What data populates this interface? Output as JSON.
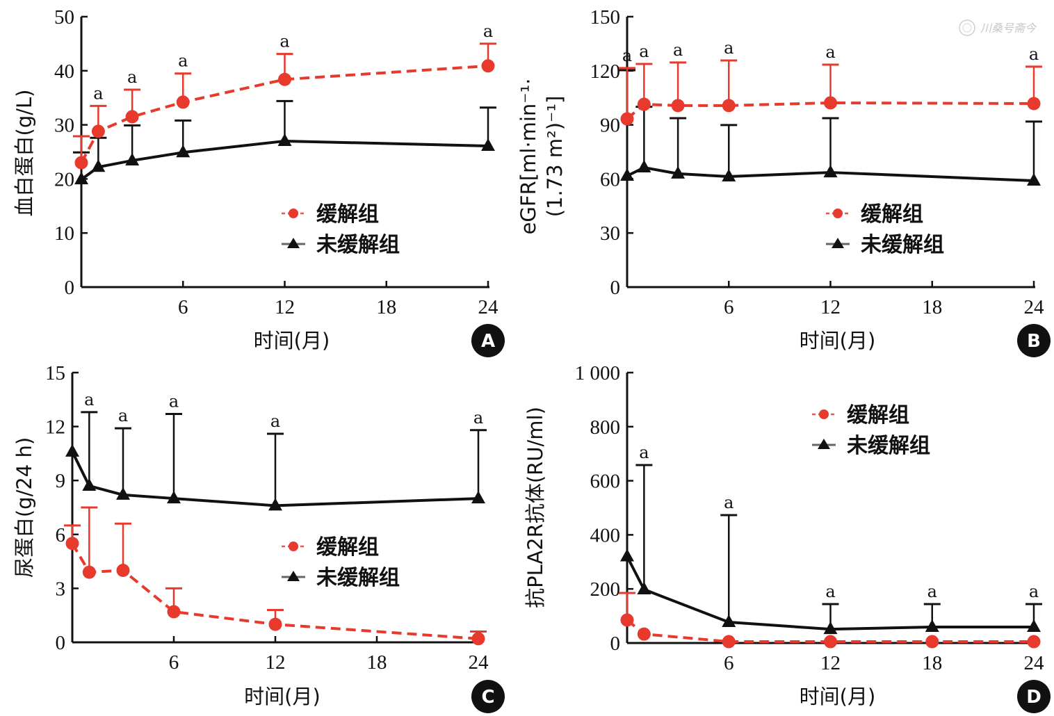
{
  "watermark": {
    "text": "川桑号斋今",
    "icon": "seal-logo-icon"
  },
  "colors": {
    "remission": "#e8392d",
    "non_remission": "#111111"
  },
  "legend_labels": {
    "remission": "缓解组",
    "non_remission": "未缓解组"
  },
  "chart_data": [
    {
      "id": "A",
      "panel_label": "A",
      "type": "line",
      "title": "",
      "xlabel": "时间(月)",
      "ylabel": "血白蛋白(g/L)",
      "xlim": [
        0,
        24
      ],
      "ylim": [
        0,
        50
      ],
      "xticks": [
        6,
        12,
        18,
        24
      ],
      "xtick_labels": [
        "6",
        "12",
        "18",
        "24"
      ],
      "yticks": [
        0,
        10,
        20,
        30,
        40,
        50
      ],
      "ytick_labels": [
        "0",
        "10",
        "20",
        "30",
        "40",
        "50"
      ],
      "grid": false,
      "legend_position": "center-right",
      "series": [
        {
          "name": "缓解组",
          "key": "remission",
          "style": "dashed",
          "marker": "circle",
          "x": [
            0,
            1,
            3,
            6,
            12,
            24
          ],
          "values": [
            23.0,
            28.8,
            31.5,
            34.2,
            38.4,
            40.9
          ],
          "error_upper": [
            27.9,
            33.5,
            36.5,
            39.5,
            43.1,
            45.0
          ]
        },
        {
          "name": "未缓解组",
          "key": "non_remission",
          "style": "solid",
          "marker": "triangle",
          "x": [
            0,
            1,
            3,
            6,
            12,
            24
          ],
          "values": [
            19.9,
            22.2,
            23.4,
            24.9,
            27.0,
            26.1
          ],
          "error_upper": [
            24.9,
            27.6,
            29.9,
            30.8,
            34.4,
            33.2
          ]
        }
      ],
      "annotations": [
        {
          "x": 1,
          "y": 33.5,
          "text": "a"
        },
        {
          "x": 3,
          "y": 36.5,
          "text": "a"
        },
        {
          "x": 6,
          "y": 39.5,
          "text": "a"
        },
        {
          "x": 12,
          "y": 43.1,
          "text": "a"
        },
        {
          "x": 24,
          "y": 45.0,
          "text": "a"
        }
      ]
    },
    {
      "id": "B",
      "panel_label": "B",
      "type": "line",
      "title": "",
      "xlabel": "时间(月)",
      "ylabel": "eGFR[ml·min⁻¹·",
      "ylabel2": "(1.73 m²)⁻¹]",
      "xlim": [
        0,
        24
      ],
      "ylim": [
        0,
        150
      ],
      "xticks": [
        6,
        12,
        18,
        24
      ],
      "xtick_labels": [
        "6",
        "12",
        "18",
        "24"
      ],
      "yticks": [
        0,
        30,
        60,
        90,
        120,
        150
      ],
      "ytick_labels": [
        "0",
        "30",
        "60",
        "90",
        "120",
        "150"
      ],
      "grid": false,
      "legend_position": "lower-right",
      "series": [
        {
          "name": "缓解组",
          "key": "remission",
          "style": "dashed",
          "marker": "circle",
          "x": [
            0,
            1,
            3,
            6,
            12,
            24
          ],
          "values": [
            93.3,
            101.4,
            100.7,
            100.7,
            102.2,
            101.8
          ],
          "error_upper": [
            121.5,
            123.8,
            124.6,
            125.7,
            123.4,
            122.3
          ]
        },
        {
          "name": "未缓解组",
          "key": "non_remission",
          "style": "solid",
          "marker": "triangle",
          "x": [
            0,
            1,
            3,
            6,
            12,
            24
          ],
          "values": [
            61.7,
            66.3,
            62.9,
            61.3,
            63.6,
            59.0
          ],
          "error_upper": [
            120.3,
            100.0,
            93.7,
            89.9,
            93.7,
            91.8
          ]
        }
      ],
      "annotations": [
        {
          "x": 0,
          "y": 121.5,
          "text": "a"
        },
        {
          "x": 1,
          "y": 123.8,
          "text": "a"
        },
        {
          "x": 3,
          "y": 124.6,
          "text": "a"
        },
        {
          "x": 6,
          "y": 125.7,
          "text": "a"
        },
        {
          "x": 12,
          "y": 123.4,
          "text": "a"
        },
        {
          "x": 24,
          "y": 122.3,
          "text": "a"
        }
      ]
    },
    {
      "id": "C",
      "panel_label": "C",
      "type": "line",
      "title": "",
      "xlabel": "时间(月)",
      "ylabel": "尿蛋白(g/24 h)",
      "xlim": [
        0,
        24
      ],
      "ylim": [
        0,
        15
      ],
      "xticks": [
        6,
        12,
        18,
        24
      ],
      "xtick_labels": [
        "6",
        "12",
        "18",
        "24"
      ],
      "yticks": [
        0,
        3,
        6,
        9,
        12,
        15
      ],
      "ytick_labels": [
        "0",
        "3",
        "6",
        "9",
        "12",
        "15"
      ],
      "grid": false,
      "legend_position": "center-right",
      "series": [
        {
          "name": "缓解组",
          "key": "remission",
          "style": "dashed",
          "marker": "circle",
          "x": [
            0,
            1,
            3,
            6,
            12,
            24
          ],
          "values": [
            5.5,
            3.9,
            4.0,
            1.7,
            1.0,
            0.2
          ],
          "error_upper": [
            6.5,
            7.5,
            6.6,
            3.0,
            1.8,
            0.6
          ]
        },
        {
          "name": "未缓解组",
          "key": "non_remission",
          "style": "solid",
          "marker": "triangle",
          "x": [
            0,
            1,
            3,
            6,
            12,
            24
          ],
          "values": [
            10.6,
            8.7,
            8.2,
            8.0,
            7.6,
            8.0
          ],
          "error_upper": [
            null,
            12.8,
            11.9,
            12.7,
            11.6,
            11.8
          ]
        }
      ],
      "annotations": [
        {
          "x": 1,
          "y": 12.8,
          "text": "a"
        },
        {
          "x": 3,
          "y": 11.9,
          "text": "a"
        },
        {
          "x": 6,
          "y": 12.7,
          "text": "a"
        },
        {
          "x": 12,
          "y": 11.6,
          "text": "a"
        },
        {
          "x": 24,
          "y": 11.8,
          "text": "a"
        }
      ]
    },
    {
      "id": "D",
      "panel_label": "D",
      "type": "line",
      "title": "",
      "xlabel": "时间(月)",
      "ylabel": "抗PLA2R抗体(RU/ml)",
      "xlim": [
        0,
        24
      ],
      "ylim": [
        0,
        1000
      ],
      "xticks": [
        6,
        12,
        18,
        24
      ],
      "xtick_labels": [
        "6",
        "12",
        "18",
        "24"
      ],
      "yticks": [
        0,
        200,
        400,
        600,
        800,
        1000
      ],
      "ytick_labels": [
        "0",
        "200",
        "400",
        "600",
        "800",
        "1 000"
      ],
      "grid": false,
      "legend_position": "top-right",
      "series": [
        {
          "name": "缓解组",
          "key": "remission",
          "style": "dashed",
          "marker": "circle",
          "x": [
            0,
            1,
            6,
            12,
            18,
            24
          ],
          "values": [
            85,
            33,
            5,
            5,
            5,
            5
          ],
          "error_upper": [
            185,
            null,
            null,
            null,
            null,
            null
          ]
        },
        {
          "name": "未缓解组",
          "key": "non_remission",
          "style": "solid",
          "marker": "triangle",
          "x": [
            0,
            1,
            6,
            12,
            18,
            24
          ],
          "values": [
            320,
            198,
            77,
            51,
            59,
            59
          ],
          "error_upper": [
            null,
            658,
            473,
            144,
            144,
            144
          ]
        }
      ],
      "annotations": [
        {
          "x": 1,
          "y": 658,
          "text": "a"
        },
        {
          "x": 6,
          "y": 473,
          "text": "a"
        },
        {
          "x": 12,
          "y": 144,
          "text": "a"
        },
        {
          "x": 18,
          "y": 144,
          "text": "a"
        },
        {
          "x": 24,
          "y": 144,
          "text": "a"
        }
      ]
    }
  ]
}
